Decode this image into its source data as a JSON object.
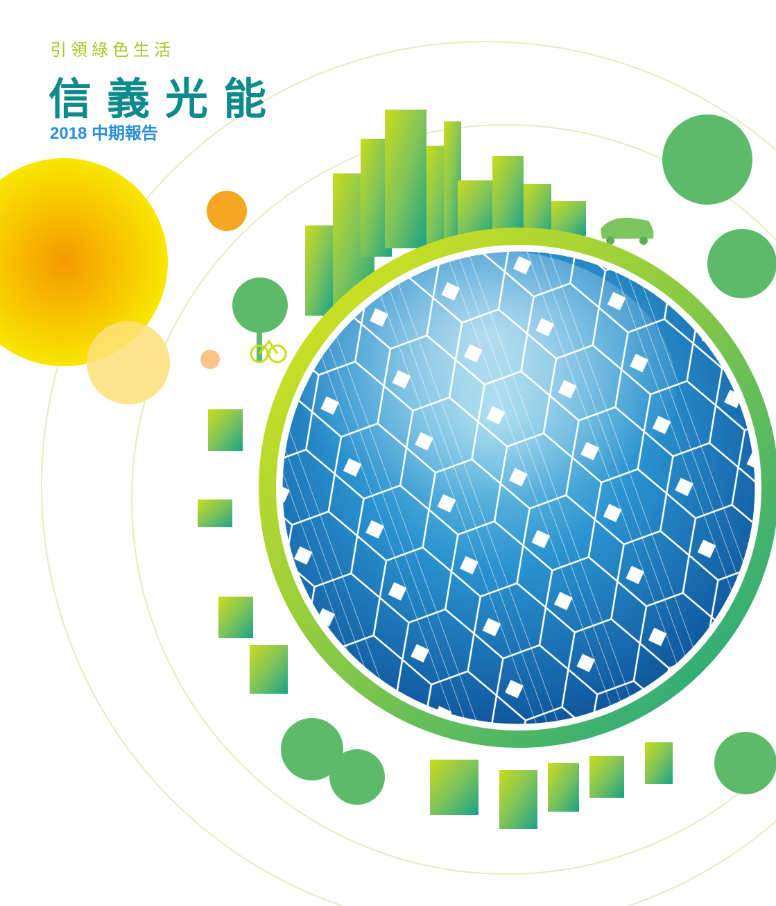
{
  "cover": {
    "slogan": "引領綠色生活",
    "brand_name": "信義光能",
    "report_title": "2018 中期報告"
  },
  "colors": {
    "slogan": "#a8c62a",
    "brand": "#0f8a8c",
    "report": "#2a8fd6",
    "ring_yellow": "#d6e21a",
    "ring_green": "#1aa386",
    "sun": "#f5a500",
    "globe_blue": "#1a6fb8"
  },
  "icons": [
    "sun-icon",
    "solar-globe-icon",
    "city-skyline-icon",
    "tree-icon",
    "car-icon",
    "bicycle-icon"
  ]
}
